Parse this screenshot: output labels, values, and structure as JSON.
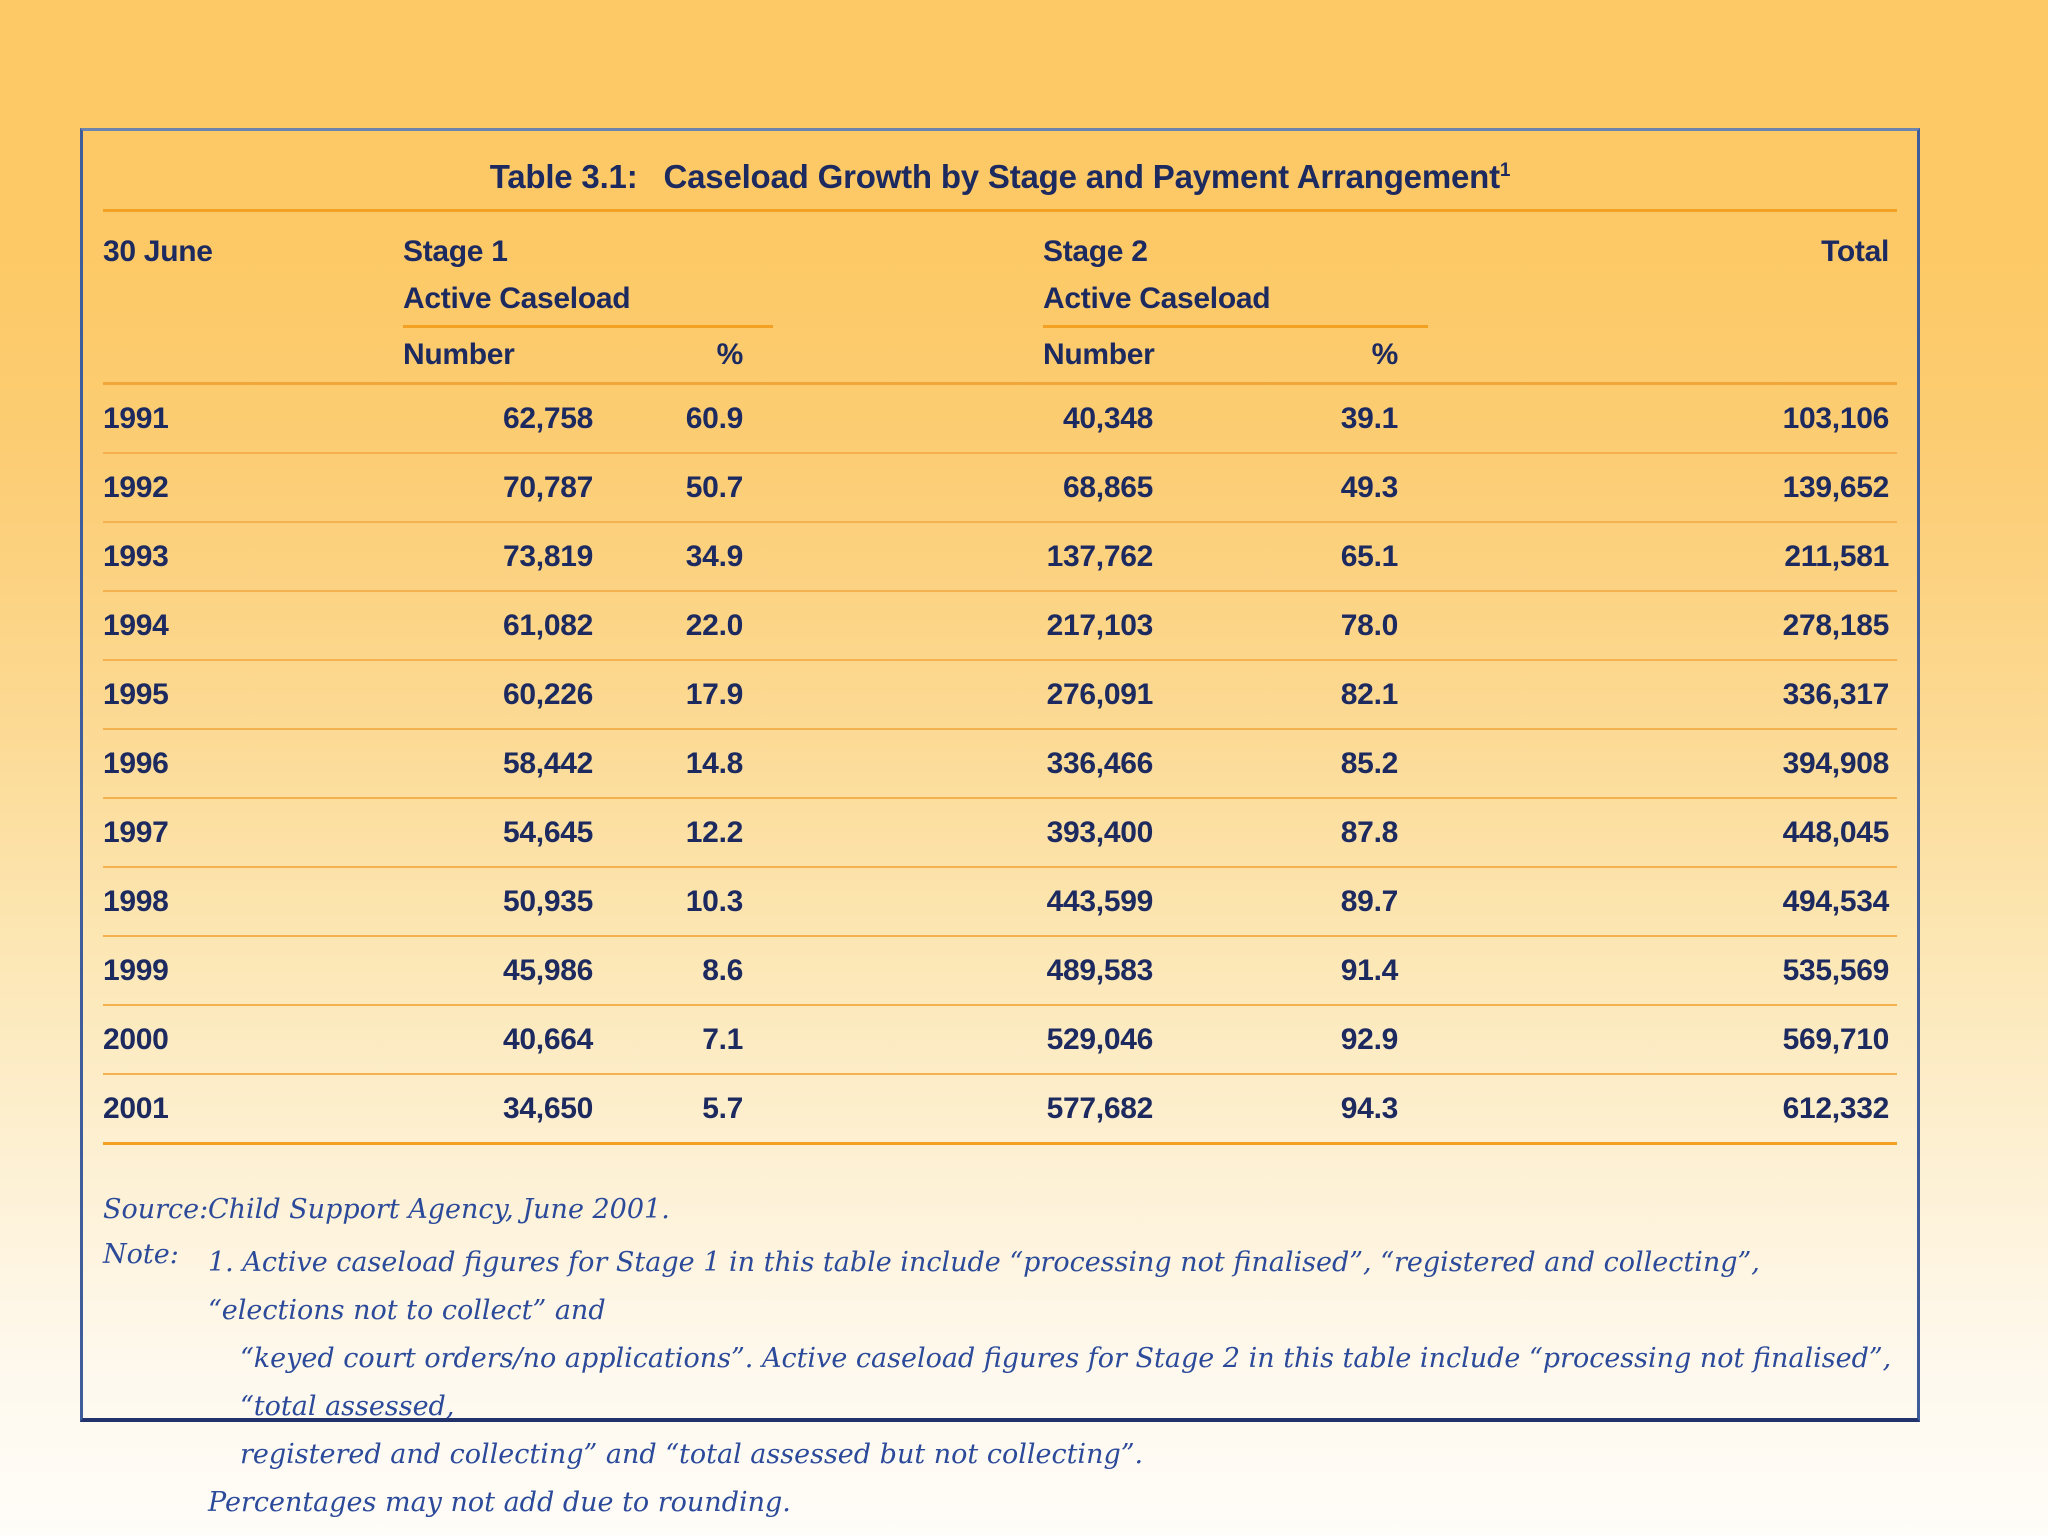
{
  "title": {
    "label": "Table 3.1:",
    "text": "Caseload Growth by Stage and Payment Arrangement",
    "superscript": "1"
  },
  "headers": {
    "period": "30 June",
    "stage1": "Stage 1",
    "stage2": "Stage 2",
    "active_caseload": "Active Caseload",
    "number": "Number",
    "percent": "%",
    "total": "Total"
  },
  "table": {
    "rows": [
      {
        "year": "1991",
        "s1_number": "62,758",
        "s1_percent": "60.9",
        "s2_number": "40,348",
        "s2_percent": "39.1",
        "total": "103,106"
      },
      {
        "year": "1992",
        "s1_number": "70,787",
        "s1_percent": "50.7",
        "s2_number": "68,865",
        "s2_percent": "49.3",
        "total": "139,652"
      },
      {
        "year": "1993",
        "s1_number": "73,819",
        "s1_percent": "34.9",
        "s2_number": "137,762",
        "s2_percent": "65.1",
        "total": "211,581"
      },
      {
        "year": "1994",
        "s1_number": "61,082",
        "s1_percent": "22.0",
        "s2_number": "217,103",
        "s2_percent": "78.0",
        "total": "278,185"
      },
      {
        "year": "1995",
        "s1_number": "60,226",
        "s1_percent": "17.9",
        "s2_number": "276,091",
        "s2_percent": "82.1",
        "total": "336,317"
      },
      {
        "year": "1996",
        "s1_number": "58,442",
        "s1_percent": "14.8",
        "s2_number": "336,466",
        "s2_percent": "85.2",
        "total": "394,908"
      },
      {
        "year": "1997",
        "s1_number": "54,645",
        "s1_percent": "12.2",
        "s2_number": "393,400",
        "s2_percent": "87.8",
        "total": "448,045"
      },
      {
        "year": "1998",
        "s1_number": "50,935",
        "s1_percent": "10.3",
        "s2_number": "443,599",
        "s2_percent": "89.7",
        "total": "494,534"
      },
      {
        "year": "1999",
        "s1_number": "45,986",
        "s1_percent": "8.6",
        "s2_number": "489,583",
        "s2_percent": "91.4",
        "total": "535,569"
      },
      {
        "year": "2000",
        "s1_number": "40,664",
        "s1_percent": "7.1",
        "s2_number": "529,046",
        "s2_percent": "92.9",
        "total": "569,710"
      },
      {
        "year": "2001",
        "s1_number": "34,650",
        "s1_percent": "5.7",
        "s2_number": "577,682",
        "s2_percent": "94.3",
        "total": "612,332"
      }
    ]
  },
  "footer": {
    "source_label": "Source:",
    "source_text": "Child Support Agency, June 2001.",
    "note_label": "Note:",
    "note_lines": [
      "1. Active caseload figures for Stage 1 in this table include “processing not finalised”, “registered and collecting”, “elections not to collect” and",
      "“keyed court orders/no applications”. Active caseload figures for Stage 2 in this table include “processing not finalised”, “total assessed,",
      "registered and collecting” and “total assessed but not collecting”.",
      "Percentages may not add due to rounding."
    ]
  },
  "colors": {
    "background_top": "#fdc966",
    "table_text": "#1c2a60",
    "rule_orange": "#f2a122",
    "row_separator": "#f5b04f",
    "note_blue": "#2c4a9a",
    "border_blue": "#3e5d9a"
  }
}
